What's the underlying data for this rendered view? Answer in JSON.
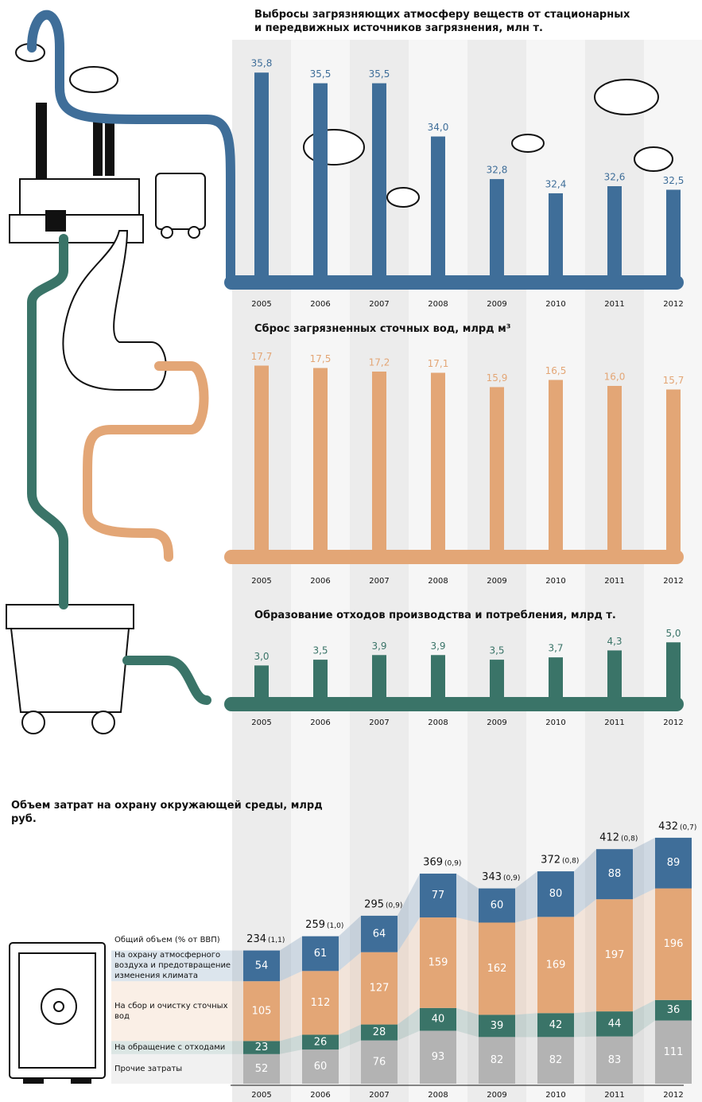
{
  "chart_data": [
    {
      "type": "bar",
      "title": "Выбросы загрязняющих атмосферу веществ от стационарных и передвижных источников загрязнения, млн т.",
      "categories": [
        "2005",
        "2006",
        "2007",
        "2008",
        "2009",
        "2010",
        "2011",
        "2012"
      ],
      "values": [
        35.8,
        35.5,
        35.5,
        34.0,
        32.8,
        32.4,
        32.6,
        32.5
      ],
      "value_labels": [
        "35,8",
        "35,5",
        "35,5",
        "34,0",
        "32,8",
        "32,4",
        "32,6",
        "32,5"
      ],
      "color": "#3f6e99",
      "ylim": [
        30,
        36.5
      ]
    },
    {
      "type": "bar",
      "title": "Сброс загрязненных сточных вод, млрд м³",
      "categories": [
        "2005",
        "2006",
        "2007",
        "2008",
        "2009",
        "2010",
        "2011",
        "2012"
      ],
      "values": [
        17.7,
        17.5,
        17.2,
        17.1,
        15.9,
        16.5,
        16.0,
        15.7
      ],
      "value_labels": [
        "17,7",
        "17,5",
        "17,2",
        "17,1",
        "15,9",
        "16,5",
        "16,0",
        "15,7"
      ],
      "color": "#e3a676",
      "ylim": [
        2,
        19
      ]
    },
    {
      "type": "bar",
      "title": "Образование отходов производства и потребления, млрд т.",
      "categories": [
        "2005",
        "2006",
        "2007",
        "2008",
        "2009",
        "2010",
        "2011",
        "2012"
      ],
      "values": [
        3.0,
        3.5,
        3.9,
        3.9,
        3.5,
        3.7,
        4.3,
        5.0
      ],
      "value_labels": [
        "3,0",
        "3,5",
        "3,9",
        "3,9",
        "3,5",
        "3,7",
        "4,3",
        "5,0"
      ],
      "color": "#3a7468",
      "ylim": [
        0,
        5.5
      ]
    },
    {
      "type": "stacked_bar",
      "title": "Объем затрат на охрану окружающей среды, млрд руб.",
      "categories": [
        "2005",
        "2006",
        "2007",
        "2008",
        "2009",
        "2010",
        "2011",
        "2012"
      ],
      "series": [
        {
          "name": "Прочие затраты",
          "color": "#b3b3b3",
          "values": [
            52,
            60,
            76,
            93,
            82,
            82,
            83,
            111
          ]
        },
        {
          "name": "На обращение с отходами",
          "color": "#3a7468",
          "values": [
            23,
            26,
            28,
            40,
            39,
            42,
            44,
            36
          ]
        },
        {
          "name": "На сбор и очистку сточных вод",
          "color": "#e3a676",
          "values": [
            105,
            112,
            127,
            159,
            162,
            169,
            197,
            196
          ]
        },
        {
          "name": "На охрану атмосферного воздуха и предотвращение изменения климата",
          "color": "#3f6e99",
          "values": [
            54,
            61,
            64,
            77,
            60,
            80,
            88,
            89
          ]
        }
      ],
      "totals_name": "Общий объем (% от ВВП)",
      "totals": [
        234,
        259,
        295,
        369,
        343,
        372,
        412,
        432
      ],
      "gdp_share": [
        1.1,
        1.0,
        0.9,
        0.9,
        0.9,
        0.8,
        0.8,
        0.7
      ],
      "gdp_share_labels": [
        "(1,1)",
        "(1,0)",
        "(0,9)",
        "(0,9)",
        "(0,9)",
        "(0,8)",
        "(0,8)",
        "(0,7)"
      ],
      "ylim": [
        0,
        450
      ]
    }
  ]
}
